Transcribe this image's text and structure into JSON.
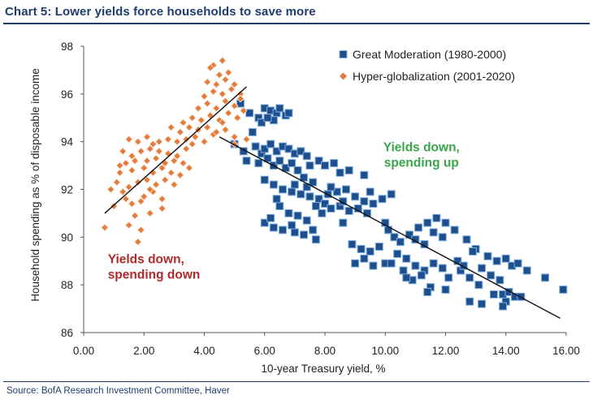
{
  "header": {
    "title": "Chart 5: Lower yields force households to save more"
  },
  "footer": {
    "source": "Source: BofA Research Investment Committee, Haver"
  },
  "chart_data": {
    "type": "scatter",
    "xlabel": "10-year Treasury yield, %",
    "ylabel": "Household spending as % of disposable income",
    "xlim": [
      0,
      16
    ],
    "ylim": [
      86,
      98
    ],
    "x_ticks": [
      "0.00",
      "2.00",
      "4.00",
      "6.00",
      "8.00",
      "10.00",
      "12.00",
      "14.00",
      "16.00"
    ],
    "y_ticks": [
      "86",
      "88",
      "90",
      "92",
      "94",
      "96",
      "98"
    ],
    "legend_position": "top-right",
    "grid": false,
    "annotations": [
      {
        "lines": [
          "Yields down,",
          "spending up"
        ],
        "color": "#3aa64c",
        "x": 11.2,
        "y": 93.6
      },
      {
        "lines": [
          "Yields down,",
          "spending down"
        ],
        "color": "#b02a2a",
        "x": 0.8,
        "y": 88.9
      }
    ],
    "trendlines": [
      {
        "series": "Great Moderation (1980-2000)",
        "from": [
          4.5,
          94.2
        ],
        "to": [
          15.8,
          86.6
        ]
      },
      {
        "series": "Hyper-globalization (2001-2020)",
        "from": [
          0.7,
          91.0
        ],
        "to": [
          5.4,
          96.3
        ]
      }
    ],
    "series": [
      {
        "name": "Great Moderation (1980-2000)",
        "marker": "square",
        "color": "#1f4e8c",
        "points": [
          [
            5.2,
            95.6
          ],
          [
            5.5,
            95.2
          ],
          [
            5.8,
            95.0
          ],
          [
            6.0,
            95.4
          ],
          [
            6.2,
            95.3
          ],
          [
            6.4,
            95.2
          ],
          [
            6.5,
            95.4
          ],
          [
            6.7,
            95.1
          ],
          [
            5.9,
            94.8
          ],
          [
            6.3,
            94.9
          ],
          [
            6.8,
            95.2
          ],
          [
            6.1,
            95.0
          ],
          [
            5.6,
            94.4
          ],
          [
            5.0,
            93.9
          ],
          [
            5.3,
            93.6
          ],
          [
            5.7,
            93.8
          ],
          [
            5.9,
            93.5
          ],
          [
            6.0,
            93.7
          ],
          [
            6.2,
            93.9
          ],
          [
            6.4,
            93.6
          ],
          [
            6.6,
            93.8
          ],
          [
            6.8,
            93.7
          ],
          [
            7.0,
            93.5
          ],
          [
            7.2,
            93.6
          ],
          [
            7.4,
            93.4
          ],
          [
            5.4,
            93.2
          ],
          [
            5.8,
            93.1
          ],
          [
            6.1,
            93.3
          ],
          [
            6.3,
            93.0
          ],
          [
            6.5,
            93.2
          ],
          [
            6.7,
            92.9
          ],
          [
            6.9,
            93.1
          ],
          [
            7.1,
            92.8
          ],
          [
            7.5,
            93.0
          ],
          [
            7.8,
            93.2
          ],
          [
            8.0,
            93.0
          ],
          [
            8.3,
            93.1
          ],
          [
            8.5,
            92.7
          ],
          [
            9.3,
            92.6
          ],
          [
            7.3,
            92.5
          ],
          [
            6.0,
            92.4
          ],
          [
            6.3,
            92.2
          ],
          [
            6.6,
            92.0
          ],
          [
            6.9,
            91.9
          ],
          [
            7.2,
            91.8
          ],
          [
            7.5,
            91.7
          ],
          [
            7.8,
            91.6
          ],
          [
            8.1,
            91.8
          ],
          [
            8.4,
            91.9
          ],
          [
            8.7,
            92.0
          ],
          [
            9.0,
            91.7
          ],
          [
            9.3,
            91.5
          ],
          [
            9.6,
            91.4
          ],
          [
            9.9,
            91.6
          ],
          [
            10.2,
            91.8
          ],
          [
            7.4,
            92.1
          ],
          [
            7.7,
            91.3
          ],
          [
            8.0,
            91.4
          ],
          [
            8.2,
            91.2
          ],
          [
            8.5,
            91.3
          ],
          [
            8.8,
            91.1
          ],
          [
            9.1,
            91.2
          ],
          [
            9.4,
            91.0
          ],
          [
            6.5,
            91.3
          ],
          [
            6.8,
            91.0
          ],
          [
            7.1,
            90.9
          ],
          [
            7.4,
            90.7
          ],
          [
            6.0,
            90.6
          ],
          [
            6.3,
            90.4
          ],
          [
            6.6,
            90.3
          ],
          [
            7.0,
            90.2
          ],
          [
            7.3,
            90.1
          ],
          [
            7.6,
            90.3
          ],
          [
            6.9,
            90.5
          ],
          [
            7.7,
            89.9
          ],
          [
            6.4,
            91.6
          ],
          [
            6.2,
            90.8
          ],
          [
            7.9,
            91.0
          ],
          [
            8.6,
            90.6
          ],
          [
            8.9,
            89.7
          ],
          [
            9.2,
            89.5
          ],
          [
            9.5,
            89.4
          ],
          [
            9.8,
            89.6
          ],
          [
            9.3,
            89.1
          ],
          [
            9.0,
            88.9
          ],
          [
            9.6,
            88.8
          ],
          [
            10.0,
            88.9
          ],
          [
            10.1,
            90.3
          ],
          [
            10.3,
            90.0
          ],
          [
            10.5,
            89.8
          ],
          [
            10.8,
            90.1
          ],
          [
            11.0,
            89.9
          ],
          [
            11.3,
            89.7
          ],
          [
            11.6,
            90.2
          ],
          [
            11.9,
            90.0
          ],
          [
            10.4,
            89.3
          ],
          [
            10.7,
            89.1
          ],
          [
            11.0,
            88.8
          ],
          [
            11.3,
            88.6
          ],
          [
            11.6,
            88.9
          ],
          [
            11.9,
            88.7
          ],
          [
            10.2,
            88.9
          ],
          [
            10.6,
            88.6
          ],
          [
            10.9,
            88.2
          ],
          [
            11.2,
            88.4
          ],
          [
            11.5,
            87.9
          ],
          [
            12.1,
            88.3
          ],
          [
            12.5,
            88.6
          ],
          [
            12.8,
            88.3
          ],
          [
            13.1,
            88.0
          ],
          [
            11.4,
            90.6
          ],
          [
            11.7,
            90.8
          ],
          [
            12.0,
            90.6
          ],
          [
            12.3,
            90.3
          ],
          [
            12.7,
            89.9
          ],
          [
            13.0,
            89.5
          ],
          [
            13.4,
            89.2
          ],
          [
            13.7,
            89.0
          ],
          [
            14.0,
            89.1
          ],
          [
            14.2,
            88.8
          ],
          [
            12.4,
            89.0
          ],
          [
            12.6,
            88.8
          ],
          [
            13.2,
            88.7
          ],
          [
            13.5,
            88.4
          ],
          [
            13.8,
            88.2
          ],
          [
            13.6,
            87.6
          ],
          [
            13.9,
            87.6
          ],
          [
            14.1,
            87.7
          ],
          [
            14.3,
            87.5
          ],
          [
            14.5,
            87.5
          ],
          [
            14.7,
            88.6
          ],
          [
            15.3,
            88.3
          ],
          [
            15.9,
            87.8
          ],
          [
            14.0,
            87.3
          ],
          [
            13.9,
            87.1
          ],
          [
            13.2,
            87.2
          ],
          [
            12.0,
            87.8
          ],
          [
            12.8,
            87.3
          ],
          [
            10.7,
            88.3
          ],
          [
            11.4,
            87.7
          ],
          [
            8.2,
            92.1
          ],
          [
            8.8,
            92.8
          ],
          [
            9.5,
            91.9
          ],
          [
            7.6,
            92.3
          ],
          [
            7.0,
            92.2
          ],
          [
            8.6,
            91.5
          ],
          [
            10.0,
            90.6
          ],
          [
            11.1,
            90.4
          ],
          [
            12.9,
            89.4
          ],
          [
            14.4,
            88.9
          ]
        ]
      },
      {
        "name": "Hyper-globalization (2001-2020)",
        "marker": "diamond",
        "color": "#e37b3c",
        "points": [
          [
            0.7,
            90.4
          ],
          [
            1.8,
            89.8
          ],
          [
            1.5,
            90.5
          ],
          [
            1.7,
            90.9
          ],
          [
            2.2,
            91.0
          ],
          [
            1.4,
            91.6
          ],
          [
            1.6,
            91.4
          ],
          [
            1.3,
            91.9
          ],
          [
            1.9,
            91.5
          ],
          [
            2.0,
            91.7
          ],
          [
            2.3,
            91.9
          ],
          [
            2.6,
            91.6
          ],
          [
            1.1,
            92.3
          ],
          [
            1.5,
            92.1
          ],
          [
            1.8,
            92.3
          ],
          [
            2.1,
            92.4
          ],
          [
            2.4,
            92.2
          ],
          [
            2.7,
            92.4
          ],
          [
            3.0,
            92.2
          ],
          [
            1.2,
            92.7
          ],
          [
            1.6,
            92.8
          ],
          [
            2.0,
            92.9
          ],
          [
            2.3,
            92.7
          ],
          [
            2.6,
            92.9
          ],
          [
            2.9,
            92.7
          ],
          [
            3.2,
            92.6
          ],
          [
            1.4,
            93.1
          ],
          [
            1.7,
            93.2
          ],
          [
            2.1,
            93.2
          ],
          [
            2.4,
            93.3
          ],
          [
            2.7,
            93.1
          ],
          [
            3.0,
            93.2
          ],
          [
            3.3,
            93.1
          ],
          [
            1.3,
            93.6
          ],
          [
            1.6,
            93.4
          ],
          [
            1.9,
            93.6
          ],
          [
            2.2,
            93.7
          ],
          [
            2.5,
            93.6
          ],
          [
            2.8,
            93.5
          ],
          [
            3.1,
            93.4
          ],
          [
            1.5,
            94.1
          ],
          [
            1.8,
            94.0
          ],
          [
            2.1,
            94.2
          ],
          [
            2.5,
            94.0
          ],
          [
            2.8,
            94.1
          ],
          [
            3.1,
            94.0
          ],
          [
            3.4,
            94.1
          ],
          [
            3.7,
            94.2
          ],
          [
            4.0,
            94.0
          ],
          [
            4.3,
            94.3
          ],
          [
            2.9,
            94.6
          ],
          [
            3.2,
            94.4
          ],
          [
            3.5,
            94.6
          ],
          [
            3.8,
            94.5
          ],
          [
            4.1,
            94.6
          ],
          [
            4.4,
            94.4
          ],
          [
            4.7,
            94.5
          ],
          [
            5.0,
            94.2
          ],
          [
            3.6,
            95.0
          ],
          [
            3.9,
            94.9
          ],
          [
            4.2,
            95.1
          ],
          [
            4.5,
            94.9
          ],
          [
            4.8,
            95.2
          ],
          [
            5.1,
            95.0
          ],
          [
            3.8,
            95.4
          ],
          [
            4.1,
            95.6
          ],
          [
            4.4,
            95.4
          ],
          [
            4.7,
            95.7
          ],
          [
            5.0,
            95.5
          ],
          [
            5.3,
            95.3
          ],
          [
            4.3,
            96.1
          ],
          [
            4.6,
            96.0
          ],
          [
            4.9,
            96.2
          ],
          [
            5.2,
            96.0
          ],
          [
            4.1,
            96.5
          ],
          [
            4.4,
            96.4
          ],
          [
            4.7,
            96.6
          ],
          [
            5.0,
            96.4
          ],
          [
            4.5,
            96.8
          ],
          [
            4.8,
            96.9
          ],
          [
            4.3,
            97.2
          ],
          [
            4.6,
            97.4
          ],
          [
            4.2,
            97.1
          ],
          [
            4.9,
            96.2
          ],
          [
            5.4,
            94.1
          ],
          [
            5.0,
            93.9
          ],
          [
            4.6,
            94.8
          ],
          [
            3.3,
            94.8
          ],
          [
            2.3,
            93.9
          ],
          [
            3.6,
            93.9
          ],
          [
            0.9,
            92.0
          ],
          [
            1.0,
            91.3
          ],
          [
            1.9,
            90.3
          ],
          [
            3.5,
            92.9
          ],
          [
            2.6,
            91.2
          ],
          [
            1.2,
            93.0
          ],
          [
            3.4,
            93.7
          ],
          [
            4.0,
            95.9
          ],
          [
            5.2,
            95.8
          ],
          [
            2.2,
            92.0
          ]
        ]
      }
    ]
  }
}
